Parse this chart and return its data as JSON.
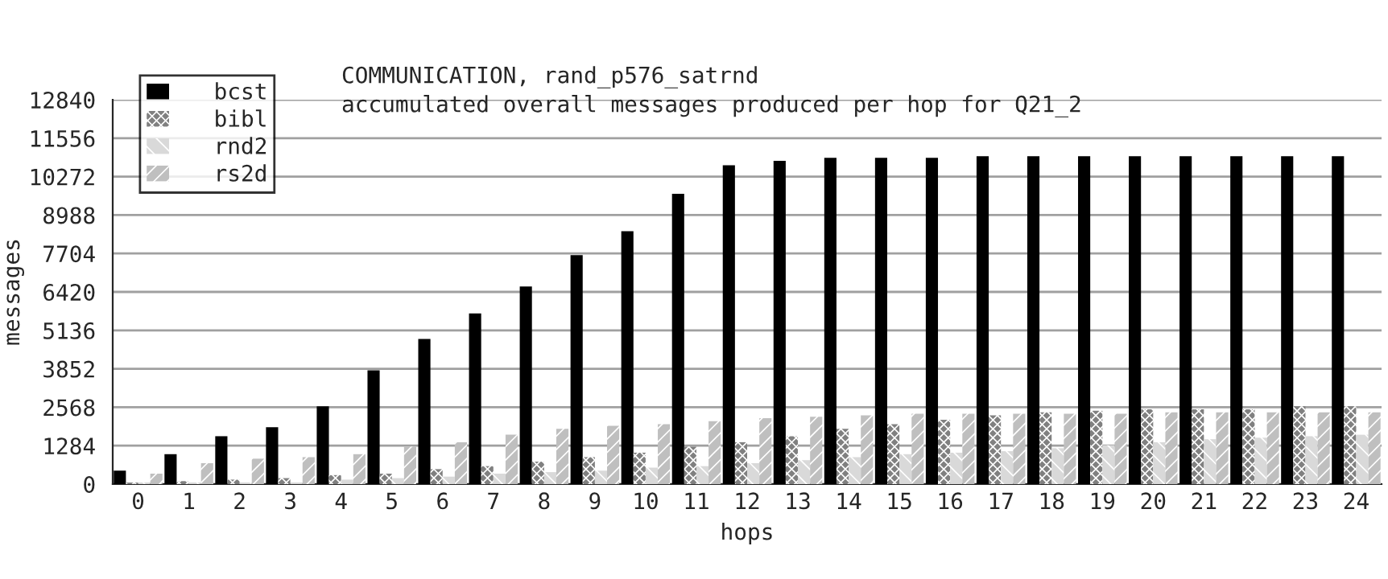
{
  "chart_data": {
    "type": "bar",
    "title": "COMMUNICATION, rand_p576_satrnd",
    "subtitle": "accumulated overall messages produced per hop for Q21_2",
    "xlabel": "hops",
    "ylabel": "messages",
    "categories": [
      "0",
      "1",
      "2",
      "3",
      "4",
      "5",
      "6",
      "7",
      "8",
      "9",
      "10",
      "11",
      "12",
      "13",
      "14",
      "15",
      "16",
      "17",
      "18",
      "19",
      "20",
      "21",
      "22",
      "23",
      "24"
    ],
    "series": [
      {
        "name": "bcst",
        "color": "#000000",
        "values": [
          450,
          1000,
          1600,
          1900,
          2600,
          3800,
          4850,
          5700,
          6600,
          7650,
          8450,
          9700,
          10650,
          10800,
          10900,
          10900,
          10900,
          10950,
          10950,
          10950,
          10950,
          10950,
          10950,
          10950,
          10950
        ]
      },
      {
        "name": "bibl",
        "color": "#808080",
        "values": [
          50,
          100,
          150,
          200,
          300,
          350,
          500,
          600,
          750,
          900,
          1050,
          1250,
          1400,
          1600,
          1850,
          2000,
          2150,
          2300,
          2400,
          2450,
          2500,
          2500,
          2500,
          2600,
          2600
        ]
      },
      {
        "name": "rnd2",
        "color": "#d9d9d9",
        "values": [
          50,
          50,
          50,
          50,
          150,
          200,
          250,
          350,
          400,
          450,
          550,
          600,
          700,
          800,
          900,
          1000,
          1050,
          1100,
          1200,
          1300,
          1400,
          1500,
          1550,
          1600,
          1650
        ]
      },
      {
        "name": "rs2d",
        "color": "#bfbfbf",
        "values": [
          350,
          700,
          850,
          900,
          1000,
          1250,
          1400,
          1650,
          1850,
          1950,
          2000,
          2100,
          2200,
          2250,
          2300,
          2350,
          2350,
          2350,
          2350,
          2350,
          2400,
          2400,
          2400,
          2400,
          2400
        ]
      }
    ],
    "ylim": [
      0,
      12840
    ],
    "yticks": [
      0,
      1284,
      2568,
      3852,
      5136,
      6420,
      7704,
      8988,
      10272,
      11556,
      12840
    ],
    "grid": "y",
    "legend": "top left"
  }
}
